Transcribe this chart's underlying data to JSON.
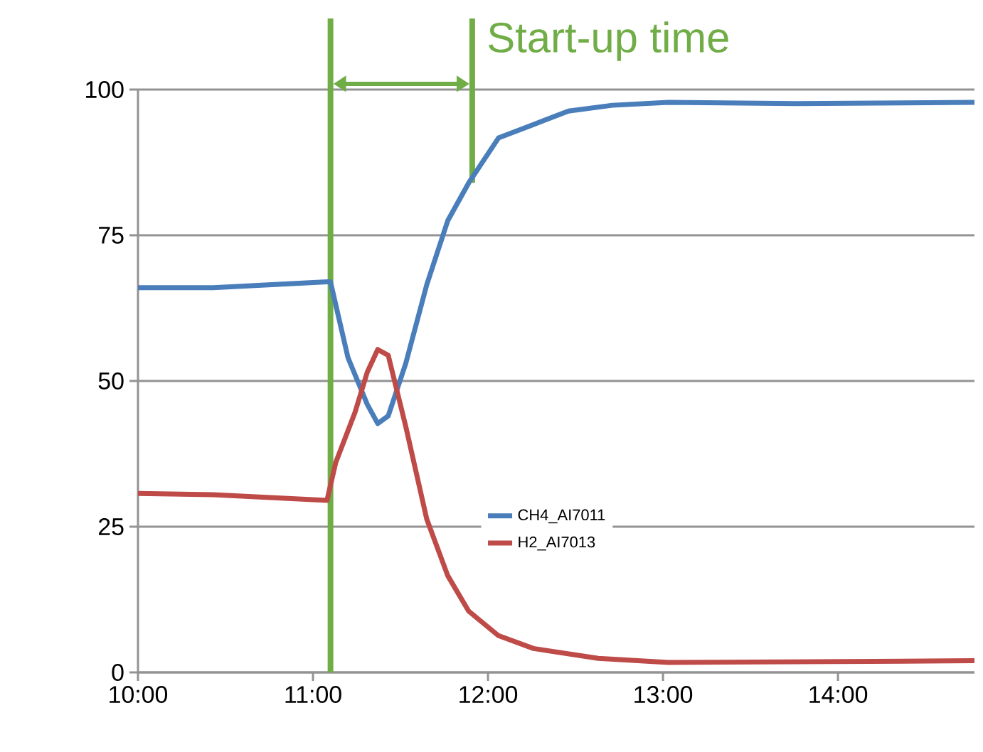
{
  "chart_data": {
    "type": "line",
    "x": [
      10.0,
      10.43,
      11.08,
      11.1,
      11.2,
      11.31,
      11.37,
      11.43,
      11.53,
      11.65,
      11.77,
      11.89,
      12.06,
      12.26,
      12.46,
      12.71,
      13.03,
      13.76,
      14.78
    ],
    "series": [
      {
        "name": "CH4_AI7011",
        "color": "#4a7ebb",
        "values": [
          66,
          66,
          67,
          67,
          54,
          46,
          42.7,
          44,
          53,
          66.5,
          77.5,
          84,
          91.7,
          94,
          96.3,
          97.3,
          97.8,
          97.6,
          97.8
        ]
      },
      {
        "name": "H2_AI7013",
        "color": "#be4b48",
        "x": [
          10.0,
          10.43,
          11.08,
          11.13,
          11.24,
          11.31,
          11.37,
          11.43,
          11.53,
          11.65,
          11.77,
          11.89,
          12.06,
          12.26,
          12.63,
          13.03,
          14.78
        ],
        "values": [
          30.7,
          30.5,
          29.5,
          36,
          44.6,
          51.5,
          55.4,
          54.4,
          42.2,
          26.3,
          16.6,
          10.5,
          6.3,
          4.1,
          2.4,
          1.7,
          2.0
        ]
      }
    ],
    "xlim": [
      10,
      14.78
    ],
    "xticks": [
      {
        "value": 10,
        "label": "10:00"
      },
      {
        "value": 11,
        "label": "11:00"
      },
      {
        "value": 12,
        "label": "12:00"
      },
      {
        "value": 13,
        "label": "13:00"
      },
      {
        "value": 14,
        "label": "14:00"
      }
    ],
    "ylim": [
      0,
      100
    ],
    "yticks": [
      0,
      25,
      50,
      75,
      100
    ],
    "annotations": [
      {
        "text": "Start-up time",
        "x": 11.91,
        "y": 84
      }
    ],
    "ref_lines": [
      {
        "axis": "x",
        "value": 11.1,
        "color": "#70ad47"
      },
      {
        "axis": "x",
        "value": 11.91,
        "color": "#70ad47"
      }
    ],
    "grid": "y",
    "legend": "bottom right",
    "marker": "none",
    "line_style": "solid"
  }
}
